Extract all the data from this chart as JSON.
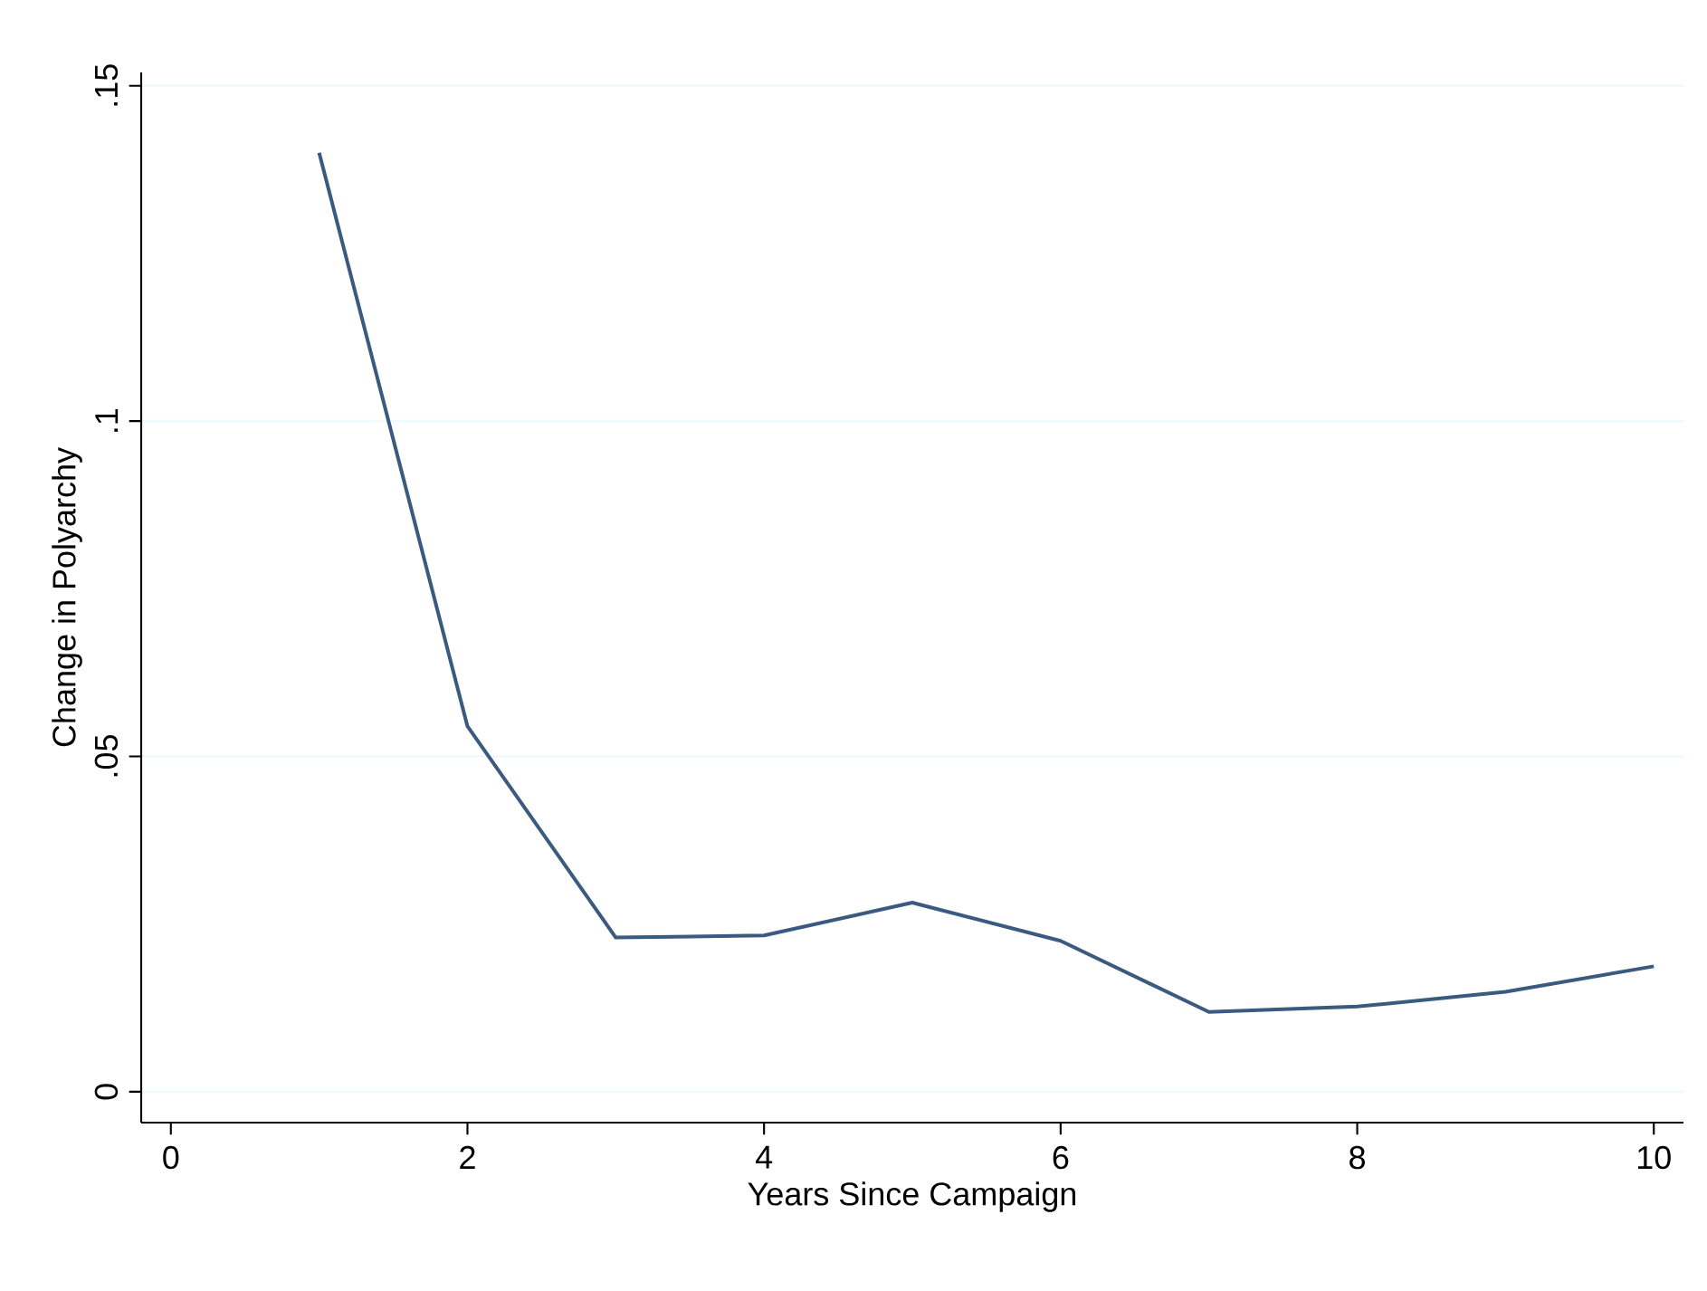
{
  "chart_data": {
    "type": "line",
    "xlabel": "Years Since Campaign",
    "ylabel": "Change in Polyarchy",
    "x": [
      1,
      2,
      3,
      4,
      5,
      6,
      7,
      8,
      9,
      10
    ],
    "series": [
      {
        "color": "#3a5a80",
        "values": [
          0.14,
          0.0545,
          0.023,
          0.0233,
          0.0282,
          0.0225,
          0.0119,
          0.0127,
          0.0149,
          0.0187
        ]
      }
    ],
    "xlim": [
      -0.2,
      10.2
    ],
    "ylim": [
      -0.0046,
      0.152
    ],
    "xticks": [
      0,
      2,
      4,
      6,
      8,
      10
    ],
    "yticks": [
      {
        "value": 0,
        "label": "0"
      },
      {
        "value": 0.05,
        "label": ".05"
      },
      {
        "value": 0.1,
        "label": ".1"
      },
      {
        "value": 0.15,
        "label": ".15"
      }
    ],
    "grid": "y",
    "marker": "none",
    "line_style": "solid"
  }
}
